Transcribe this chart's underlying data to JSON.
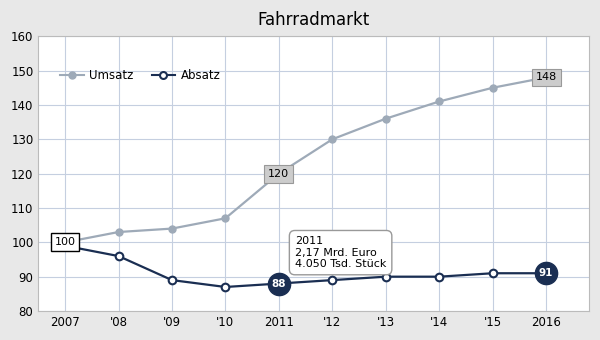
{
  "title": "Fahrradmarkt",
  "years": [
    2007,
    2008,
    2009,
    2010,
    2011,
    2012,
    2013,
    2014,
    2015,
    2016
  ],
  "year_labels": [
    "2007",
    "'08",
    "'09",
    "'10",
    "2011",
    "'12",
    "'13",
    "'14",
    "'15",
    "2016"
  ],
  "umsatz": [
    100,
    103,
    104,
    107,
    120,
    130,
    136,
    141,
    145,
    148
  ],
  "absatz": [
    99,
    96,
    89,
    87,
    88,
    89,
    90,
    90,
    91,
    91
  ],
  "umsatz_color": "#9eaab8",
  "absatz_color": "#1a2e52",
  "umsatz_label": "Umsatz",
  "absatz_label": "Absatz",
  "ylim": [
    80,
    160
  ],
  "yticks": [
    80,
    90,
    100,
    110,
    120,
    130,
    140,
    150,
    160
  ],
  "annotation_text": "2011\n2,17 Mrd. Euro\n4.050 Tsd. Stück",
  "bg_color": "#e8e8e8",
  "plot_bg_color": "#ffffff",
  "grid_color": "#c5cfe0",
  "outer_border_color": "#cccccc"
}
